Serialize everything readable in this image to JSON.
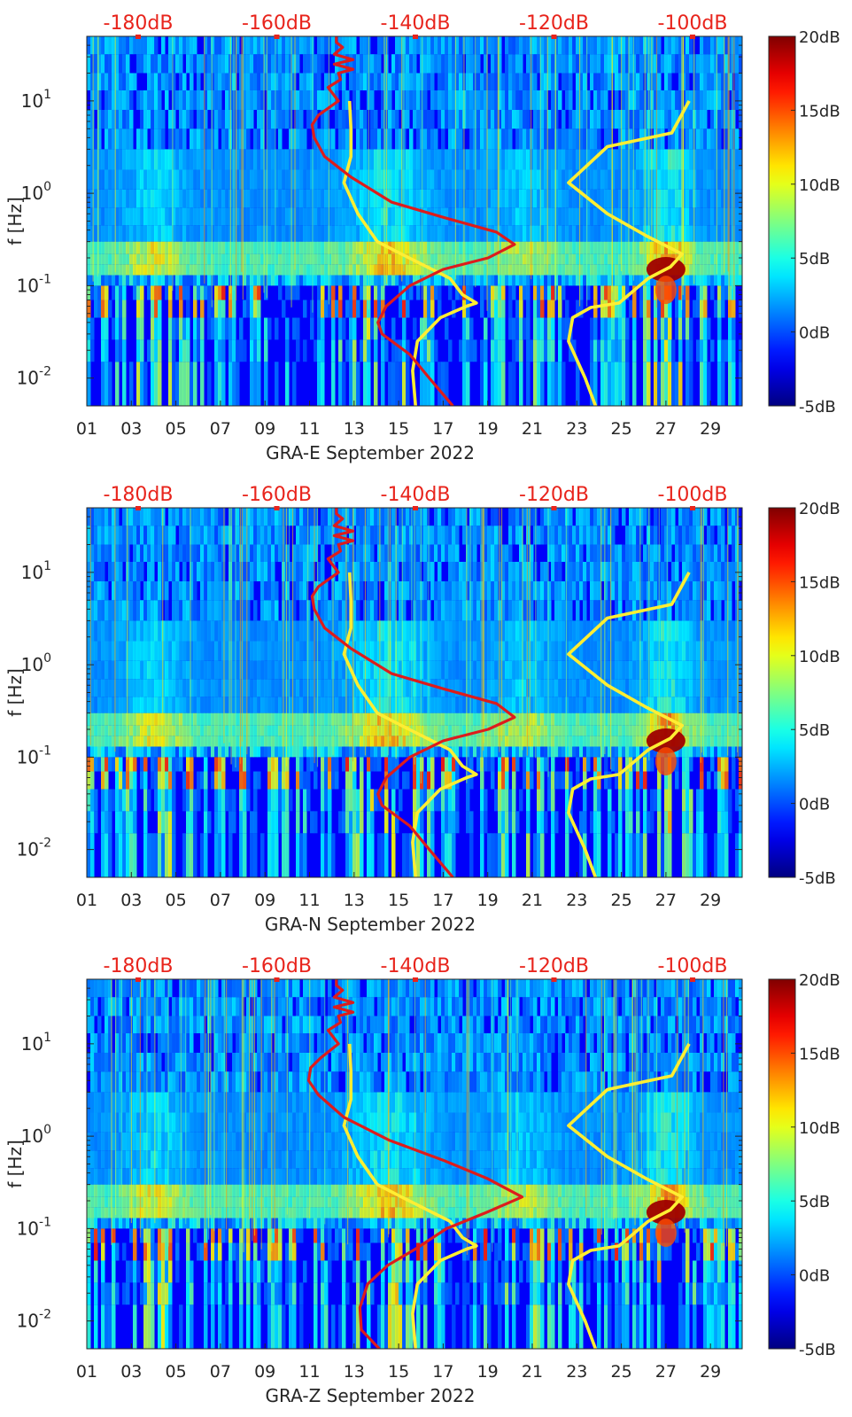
{
  "chart_data": [
    {
      "type": "heatmap",
      "station": "GRA-E",
      "xlabel": "GRA-E September 2022",
      "ylabel": "f [Hz]",
      "x_ticks": [
        "01",
        "03",
        "05",
        "07",
        "09",
        "11",
        "13",
        "15",
        "17",
        "19",
        "21",
        "23",
        "25",
        "27",
        "29"
      ],
      "y_ticks": [
        "10^-2",
        "10^-1",
        "10^0",
        "10^1"
      ],
      "y_scale": "log",
      "ylim": [
        0.005,
        50
      ],
      "xlim": [
        1,
        31
      ],
      "top_ticks": [
        "-180dB",
        "-160dB",
        "-140dB",
        "-120dB",
        "-100dB"
      ],
      "colorbar": {
        "labels": [
          "20dB",
          "15dB",
          "10dB",
          "5dB",
          "0dB",
          "-5dB"
        ],
        "range": [
          -5,
          20
        ],
        "colormap": "jet"
      },
      "series": [
        {
          "color": "#ffee33",
          "style": "noise-model-low",
          "points": [
            [
              0.03,
              0.005
            ],
            [
              -0.4,
              0.012
            ],
            [
              0.3,
              0.025
            ],
            [
              3.6,
              0.045
            ],
            [
              7.4,
              0.06
            ],
            [
              8.8,
              0.065
            ],
            [
              6.8,
              0.08
            ],
            [
              5.0,
              0.12
            ],
            [
              -2.0,
              0.22
            ],
            [
              -5.5,
              0.3
            ],
            [
              -8.3,
              0.6
            ],
            [
              -10.3,
              1.3
            ],
            [
              -9.3,
              2.5
            ],
            [
              -9.3,
              5.0
            ],
            [
              -9.5,
              10.0
            ]
          ]
        },
        {
          "color": "#ffee33",
          "style": "noise-model-high",
          "points": [
            [
              26.0,
              0.005
            ],
            [
              24.5,
              0.01
            ],
            [
              22.1,
              0.025
            ],
            [
              22.7,
              0.045
            ],
            [
              25.3,
              0.058
            ],
            [
              29.4,
              0.065
            ],
            [
              33.6,
              0.12
            ],
            [
              36.8,
              0.16
            ],
            [
              38.5,
              0.22
            ],
            [
              33.2,
              0.35
            ],
            [
              27.7,
              0.6
            ],
            [
              22.1,
              1.3
            ],
            [
              27.7,
              3.2
            ],
            [
              37.0,
              4.5
            ],
            [
              39.5,
              10.0
            ]
          ]
        },
        {
          "color": "#dd1c1c",
          "style": "station-median",
          "points": [
            [
              5.4,
              0.005
            ],
            [
              2.0,
              0.01
            ],
            [
              -0.8,
              0.018
            ],
            [
              -4.8,
              0.03
            ],
            [
              -5.4,
              0.04
            ],
            [
              -4.2,
              0.06
            ],
            [
              -0.8,
              0.1
            ],
            [
              4.0,
              0.15
            ],
            [
              10.5,
              0.2
            ],
            [
              14.3,
              0.28
            ],
            [
              11.7,
              0.38
            ],
            [
              4.0,
              0.55
            ],
            [
              -3.4,
              0.8
            ],
            [
              -9.3,
              1.5
            ],
            [
              -13.1,
              2.5
            ],
            [
              -14.6,
              4.0
            ],
            [
              -14.9,
              5.5
            ],
            [
              -14.0,
              7.0
            ],
            [
              -11.1,
              10.0
            ],
            [
              -12.6,
              14.0
            ],
            [
              -10.8,
              17.0
            ],
            [
              -11.1,
              20.0
            ],
            [
              -9.0,
              22.0
            ],
            [
              -11.7,
              25.0
            ],
            [
              -9.0,
              28.0
            ],
            [
              -11.7,
              32.0
            ],
            [
              -10.5,
              38.0
            ],
            [
              -11.4,
              43.0
            ],
            [
              -11.4,
              50.0
            ]
          ]
        }
      ]
    },
    {
      "type": "heatmap",
      "station": "GRA-N",
      "xlabel": "GRA-N September 2022",
      "ylabel": "f [Hz]",
      "x_ticks": [
        "01",
        "03",
        "05",
        "07",
        "09",
        "11",
        "13",
        "15",
        "17",
        "19",
        "21",
        "23",
        "25",
        "27",
        "29"
      ],
      "y_ticks": [
        "10^-2",
        "10^-1",
        "10^0",
        "10^1"
      ],
      "y_scale": "log",
      "ylim": [
        0.005,
        50
      ],
      "xlim": [
        1,
        31
      ],
      "top_ticks": [
        "-180dB",
        "-160dB",
        "-140dB",
        "-120dB",
        "-100dB"
      ],
      "colorbar": {
        "labels": [
          "20dB",
          "15dB",
          "10dB",
          "5dB",
          "0dB",
          "-5dB"
        ],
        "range": [
          -5,
          20
        ],
        "colormap": "jet"
      },
      "series": [
        {
          "color": "#ffee33",
          "style": "noise-model-low",
          "points": [
            [
              0.03,
              0.005
            ],
            [
              -0.4,
              0.012
            ],
            [
              0.3,
              0.025
            ],
            [
              3.6,
              0.045
            ],
            [
              7.4,
              0.06
            ],
            [
              8.8,
              0.065
            ],
            [
              6.8,
              0.08
            ],
            [
              5.0,
              0.12
            ],
            [
              -2.0,
              0.22
            ],
            [
              -5.5,
              0.3
            ],
            [
              -8.3,
              0.6
            ],
            [
              -10.3,
              1.3
            ],
            [
              -9.3,
              2.5
            ],
            [
              -9.3,
              5.0
            ],
            [
              -9.5,
              10.0
            ]
          ]
        },
        {
          "color": "#ffee33",
          "style": "noise-model-high",
          "points": [
            [
              26.0,
              0.005
            ],
            [
              24.5,
              0.01
            ],
            [
              22.1,
              0.025
            ],
            [
              22.7,
              0.045
            ],
            [
              25.3,
              0.058
            ],
            [
              29.4,
              0.065
            ],
            [
              33.6,
              0.12
            ],
            [
              36.8,
              0.16
            ],
            [
              38.5,
              0.22
            ],
            [
              33.2,
              0.35
            ],
            [
              27.7,
              0.6
            ],
            [
              22.1,
              1.3
            ],
            [
              27.7,
              3.2
            ],
            [
              37.0,
              4.5
            ],
            [
              39.5,
              10.0
            ]
          ]
        },
        {
          "color": "#dd1c1c",
          "style": "station-median",
          "points": [
            [
              5.4,
              0.005
            ],
            [
              2.0,
              0.01
            ],
            [
              -0.8,
              0.018
            ],
            [
              -4.8,
              0.03
            ],
            [
              -5.4,
              0.04
            ],
            [
              -4.2,
              0.06
            ],
            [
              -0.8,
              0.1
            ],
            [
              4.0,
              0.15
            ],
            [
              10.5,
              0.2
            ],
            [
              14.3,
              0.27
            ],
            [
              11.7,
              0.38
            ],
            [
              4.0,
              0.55
            ],
            [
              -3.4,
              0.8
            ],
            [
              -9.3,
              1.5
            ],
            [
              -13.1,
              2.5
            ],
            [
              -14.6,
              4.0
            ],
            [
              -14.9,
              5.5
            ],
            [
              -14.0,
              7.0
            ],
            [
              -11.1,
              10.0
            ],
            [
              -12.6,
              14.0
            ],
            [
              -10.8,
              17.0
            ],
            [
              -11.1,
              20.0
            ],
            [
              -9.0,
              22.0
            ],
            [
              -11.7,
              25.0
            ],
            [
              -9.0,
              28.0
            ],
            [
              -11.7,
              32.0
            ],
            [
              -10.5,
              38.0
            ],
            [
              -11.4,
              43.0
            ],
            [
              -11.4,
              50.0
            ]
          ]
        }
      ]
    },
    {
      "type": "heatmap",
      "station": "GRA-Z",
      "xlabel": "GRA-Z September 2022",
      "ylabel": "f [Hz]",
      "x_ticks": [
        "01",
        "03",
        "05",
        "07",
        "09",
        "11",
        "13",
        "15",
        "17",
        "19",
        "21",
        "23",
        "25",
        "27",
        "29"
      ],
      "y_ticks": [
        "10^-2",
        "10^-1",
        "10^0",
        "10^1"
      ],
      "y_scale": "log",
      "ylim": [
        0.005,
        50
      ],
      "xlim": [
        1,
        31
      ],
      "top_ticks": [
        "-180dB",
        "-160dB",
        "-140dB",
        "-120dB",
        "-100dB"
      ],
      "colorbar": {
        "labels": [
          "20dB",
          "15dB",
          "10dB",
          "5dB",
          "0dB",
          "-5dB"
        ],
        "range": [
          -5,
          20
        ],
        "colormap": "jet"
      },
      "series": [
        {
          "color": "#ffee33",
          "style": "noise-model-low",
          "points": [
            [
              0.03,
              0.005
            ],
            [
              -0.4,
              0.012
            ],
            [
              0.3,
              0.025
            ],
            [
              3.6,
              0.045
            ],
            [
              7.4,
              0.06
            ],
            [
              8.8,
              0.065
            ],
            [
              6.8,
              0.08
            ],
            [
              5.0,
              0.12
            ],
            [
              -2.0,
              0.22
            ],
            [
              -5.5,
              0.3
            ],
            [
              -8.3,
              0.6
            ],
            [
              -10.3,
              1.3
            ],
            [
              -9.3,
              2.5
            ],
            [
              -9.3,
              5.0
            ],
            [
              -9.5,
              10.0
            ]
          ]
        },
        {
          "color": "#ffee33",
          "style": "noise-model-high",
          "points": [
            [
              26.0,
              0.005
            ],
            [
              24.5,
              0.01
            ],
            [
              22.1,
              0.025
            ],
            [
              22.7,
              0.045
            ],
            [
              25.3,
              0.058
            ],
            [
              29.4,
              0.065
            ],
            [
              33.6,
              0.12
            ],
            [
              36.8,
              0.16
            ],
            [
              38.5,
              0.22
            ],
            [
              33.2,
              0.35
            ],
            [
              27.7,
              0.6
            ],
            [
              22.1,
              1.3
            ],
            [
              27.7,
              3.2
            ],
            [
              37.0,
              4.5
            ],
            [
              39.5,
              10.0
            ]
          ]
        },
        {
          "color": "#dd1c1c",
          "style": "station-median",
          "points": [
            [
              -5.2,
              0.005
            ],
            [
              -7.8,
              0.008
            ],
            [
              -8.0,
              0.014
            ],
            [
              -6.9,
              0.025
            ],
            [
              -4.0,
              0.04
            ],
            [
              0.0,
              0.06
            ],
            [
              4.5,
              0.1
            ],
            [
              10.3,
              0.15
            ],
            [
              15.4,
              0.22
            ],
            [
              10.3,
              0.35
            ],
            [
              4.0,
              0.55
            ],
            [
              -3.7,
              0.9
            ],
            [
              -10.3,
              1.6
            ],
            [
              -14.0,
              2.8
            ],
            [
              -15.4,
              4.0
            ],
            [
              -15.1,
              5.5
            ],
            [
              -13.7,
              7.0
            ],
            [
              -11.1,
              10.0
            ],
            [
              -12.6,
              14.0
            ],
            [
              -10.8,
              17.0
            ],
            [
              -11.1,
              20.0
            ],
            [
              -9.0,
              22.0
            ],
            [
              -11.7,
              25.0
            ],
            [
              -9.0,
              28.0
            ],
            [
              -11.7,
              32.0
            ],
            [
              -10.5,
              38.0
            ],
            [
              -11.4,
              43.0
            ],
            [
              -11.4,
              50.0
            ]
          ]
        }
      ]
    }
  ],
  "colors": {
    "top_tick_labels": "#e8241c",
    "yellow_curve": "#ffee33",
    "red_curve": "#dd1c1c",
    "background": "#ffffff",
    "axis_text": "#262626"
  }
}
